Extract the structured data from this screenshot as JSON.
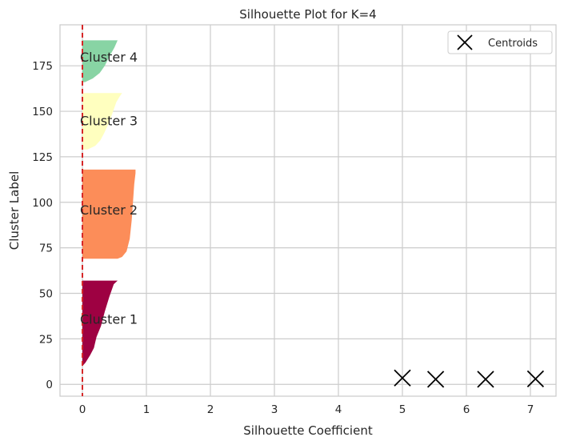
{
  "chart_data": {
    "type": "silhouette",
    "title": "Silhouette Plot for K=4",
    "xlabel": "Silhouette Coefficient",
    "ylabel": "Cluster Label",
    "xlim": [
      -0.35,
      7.4
    ],
    "ylim": [
      -6.5,
      197.5
    ],
    "xticks": [
      0,
      1,
      2,
      3,
      4,
      5,
      6,
      7
    ],
    "yticks": [
      0,
      25,
      50,
      75,
      100,
      125,
      150,
      175
    ],
    "grid": true,
    "legend": {
      "position": "top-right",
      "entries": [
        {
          "label": "Centroids",
          "marker": "x",
          "color": "#000000"
        }
      ]
    },
    "reference_line": {
      "x": 0.0,
      "color": "#d62728",
      "style": "dashed"
    },
    "clusters": [
      {
        "label": "Cluster 1",
        "color": "#9e0142",
        "y_start": 10,
        "y_end": 57,
        "label_y": 36,
        "profile": [
          [
            10,
            0.0
          ],
          [
            12,
            0.05
          ],
          [
            16,
            0.12
          ],
          [
            20,
            0.18
          ],
          [
            26,
            0.22
          ],
          [
            32,
            0.29
          ],
          [
            40,
            0.35
          ],
          [
            48,
            0.42
          ],
          [
            55,
            0.49
          ],
          [
            57,
            0.55
          ]
        ]
      },
      {
        "label": "Cluster 2",
        "color": "#fc8d59",
        "y_start": 69,
        "y_end": 118,
        "label_y": 96,
        "profile": [
          [
            69,
            0.55
          ],
          [
            70,
            0.62
          ],
          [
            73,
            0.69
          ],
          [
            80,
            0.74
          ],
          [
            90,
            0.77
          ],
          [
            100,
            0.79
          ],
          [
            110,
            0.81
          ],
          [
            116,
            0.83
          ],
          [
            118,
            0.83
          ]
        ]
      },
      {
        "label": "Cluster 3",
        "color": "#ffffbf",
        "y_start": 129,
        "y_end": 160,
        "label_y": 145,
        "profile": [
          [
            129,
            0.08
          ],
          [
            131,
            0.2
          ],
          [
            134,
            0.28
          ],
          [
            138,
            0.34
          ],
          [
            144,
            0.42
          ],
          [
            150,
            0.48
          ],
          [
            155,
            0.53
          ],
          [
            158,
            0.58
          ],
          [
            160,
            0.62
          ]
        ]
      },
      {
        "label": "Cluster 4",
        "color": "#88d4a4",
        "y_start": 166,
        "y_end": 189,
        "label_y": 180,
        "profile": [
          [
            166,
            0.04
          ],
          [
            168,
            0.16
          ],
          [
            171,
            0.27
          ],
          [
            175,
            0.35
          ],
          [
            180,
            0.42
          ],
          [
            185,
            0.5
          ],
          [
            189,
            0.55
          ]
        ]
      }
    ],
    "centroids": [
      {
        "x": 5.0,
        "y": 3.5
      },
      {
        "x": 5.52,
        "y": 2.8
      },
      {
        "x": 6.3,
        "y": 2.8
      },
      {
        "x": 7.08,
        "y": 3.0
      }
    ]
  }
}
